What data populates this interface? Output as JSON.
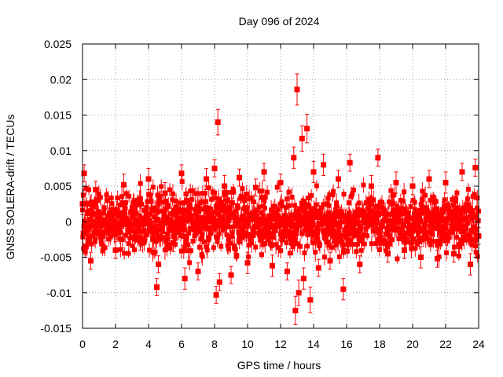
{
  "chart_data": {
    "type": "scatter",
    "title": "Day 096 of 2024",
    "xlabel": "GPS time / hours",
    "ylabel": "GNSS SOLERA-drift / TECUs",
    "xlim": [
      0,
      24
    ],
    "ylim": [
      -0.015,
      0.025
    ],
    "x_ticks": [
      0,
      2,
      4,
      6,
      8,
      10,
      12,
      14,
      16,
      18,
      20,
      22,
      24
    ],
    "x_tick_labels": [
      "0",
      "2",
      "4",
      "6",
      "8",
      "10",
      "12",
      "14",
      "16",
      "18",
      "20",
      "22",
      "24"
    ],
    "y_ticks": [
      -0.015,
      -0.01,
      -0.005,
      0,
      0.005,
      0.01,
      0.015,
      0.02,
      0.025
    ],
    "y_tick_labels": [
      "-0.015",
      "-0.01",
      "-0.005",
      "0",
      "0.005",
      "0.01",
      "0.015",
      "0.02",
      "0.025"
    ],
    "grid": true,
    "legend": "none",
    "color": "#ff0000",
    "markers": "filled squares with vertical error bars",
    "series": [
      {
        "x": [
          0.0,
          0.1,
          0.2,
          0.3,
          0.5,
          0.8,
          1.2,
          1.5,
          2.0,
          2.5,
          3.0,
          3.5,
          4.0,
          4.5,
          4.6,
          5.0,
          5.5,
          6.0,
          6.2,
          6.5,
          7.0,
          7.5,
          8.0,
          8.1,
          8.2,
          8.3,
          8.6,
          9.0,
          9.5,
          10.0,
          10.5,
          11.0,
          11.5,
          12.0,
          12.4,
          12.8,
          12.9,
          13.0,
          13.1,
          13.3,
          13.4,
          13.6,
          13.8,
          14.0,
          14.3,
          14.6,
          15.0,
          15.5,
          15.8,
          16.2,
          16.8,
          17.5,
          17.9,
          18.5,
          19.0,
          19.5,
          20.0,
          20.5,
          21.0,
          21.5,
          22.0,
          22.5,
          23.0,
          23.5,
          23.8,
          24.0
        ],
        "y": [
          0.0025,
          0.0068,
          -0.0035,
          0.0012,
          -0.0055,
          0.0045,
          -0.002,
          0.003,
          -0.004,
          0.0052,
          0.0015,
          -0.0028,
          0.006,
          -0.0092,
          -0.006,
          0.004,
          -0.003,
          0.0068,
          -0.008,
          0.002,
          -0.007,
          0.006,
          0.0075,
          -0.0103,
          0.014,
          -0.0085,
          0.005,
          -0.0075,
          0.0062,
          -0.0058,
          0.0048,
          0.007,
          -0.0062,
          0.0055,
          -0.007,
          0.009,
          -0.0125,
          0.0186,
          -0.01,
          0.0117,
          -0.008,
          0.0131,
          -0.011,
          0.007,
          -0.0065,
          0.008,
          -0.0055,
          0.006,
          -0.0095,
          0.0083,
          -0.006,
          0.005,
          0.009,
          -0.0045,
          0.0055,
          -0.004,
          0.005,
          -0.005,
          0.006,
          -0.0052,
          0.0055,
          -0.0045,
          0.007,
          -0.006,
          0.0076,
          -0.002
        ],
        "err": [
          0.0015,
          0.0012,
          0.0012,
          0.0015,
          0.0012,
          0.0012,
          0.0015,
          0.0012,
          0.0012,
          0.0015,
          0.0012,
          0.0012,
          0.0015,
          0.0012,
          0.0012,
          0.0015,
          0.0012,
          0.0012,
          0.0015,
          0.0012,
          0.0012,
          0.0015,
          0.0012,
          0.0012,
          0.0018,
          0.0012,
          0.0015,
          0.0012,
          0.0012,
          0.0015,
          0.0012,
          0.0012,
          0.0015,
          0.0012,
          0.0012,
          0.0015,
          0.002,
          0.0022,
          0.0018,
          0.0018,
          0.0015,
          0.002,
          0.0018,
          0.0015,
          0.0012,
          0.0015,
          0.0012,
          0.0012,
          0.0015,
          0.0012,
          0.0012,
          0.0015,
          0.0012,
          0.0012,
          0.0015,
          0.0012,
          0.0012,
          0.0015,
          0.0012,
          0.0012,
          0.0015,
          0.0012,
          0.0012,
          0.0015,
          0.0012,
          0.0012
        ]
      }
    ],
    "dense_band": {
      "x": [
        0,
        24
      ],
      "y": [
        -0.006,
        0.006
      ],
      "note": "thousands of overlapping points"
    }
  }
}
